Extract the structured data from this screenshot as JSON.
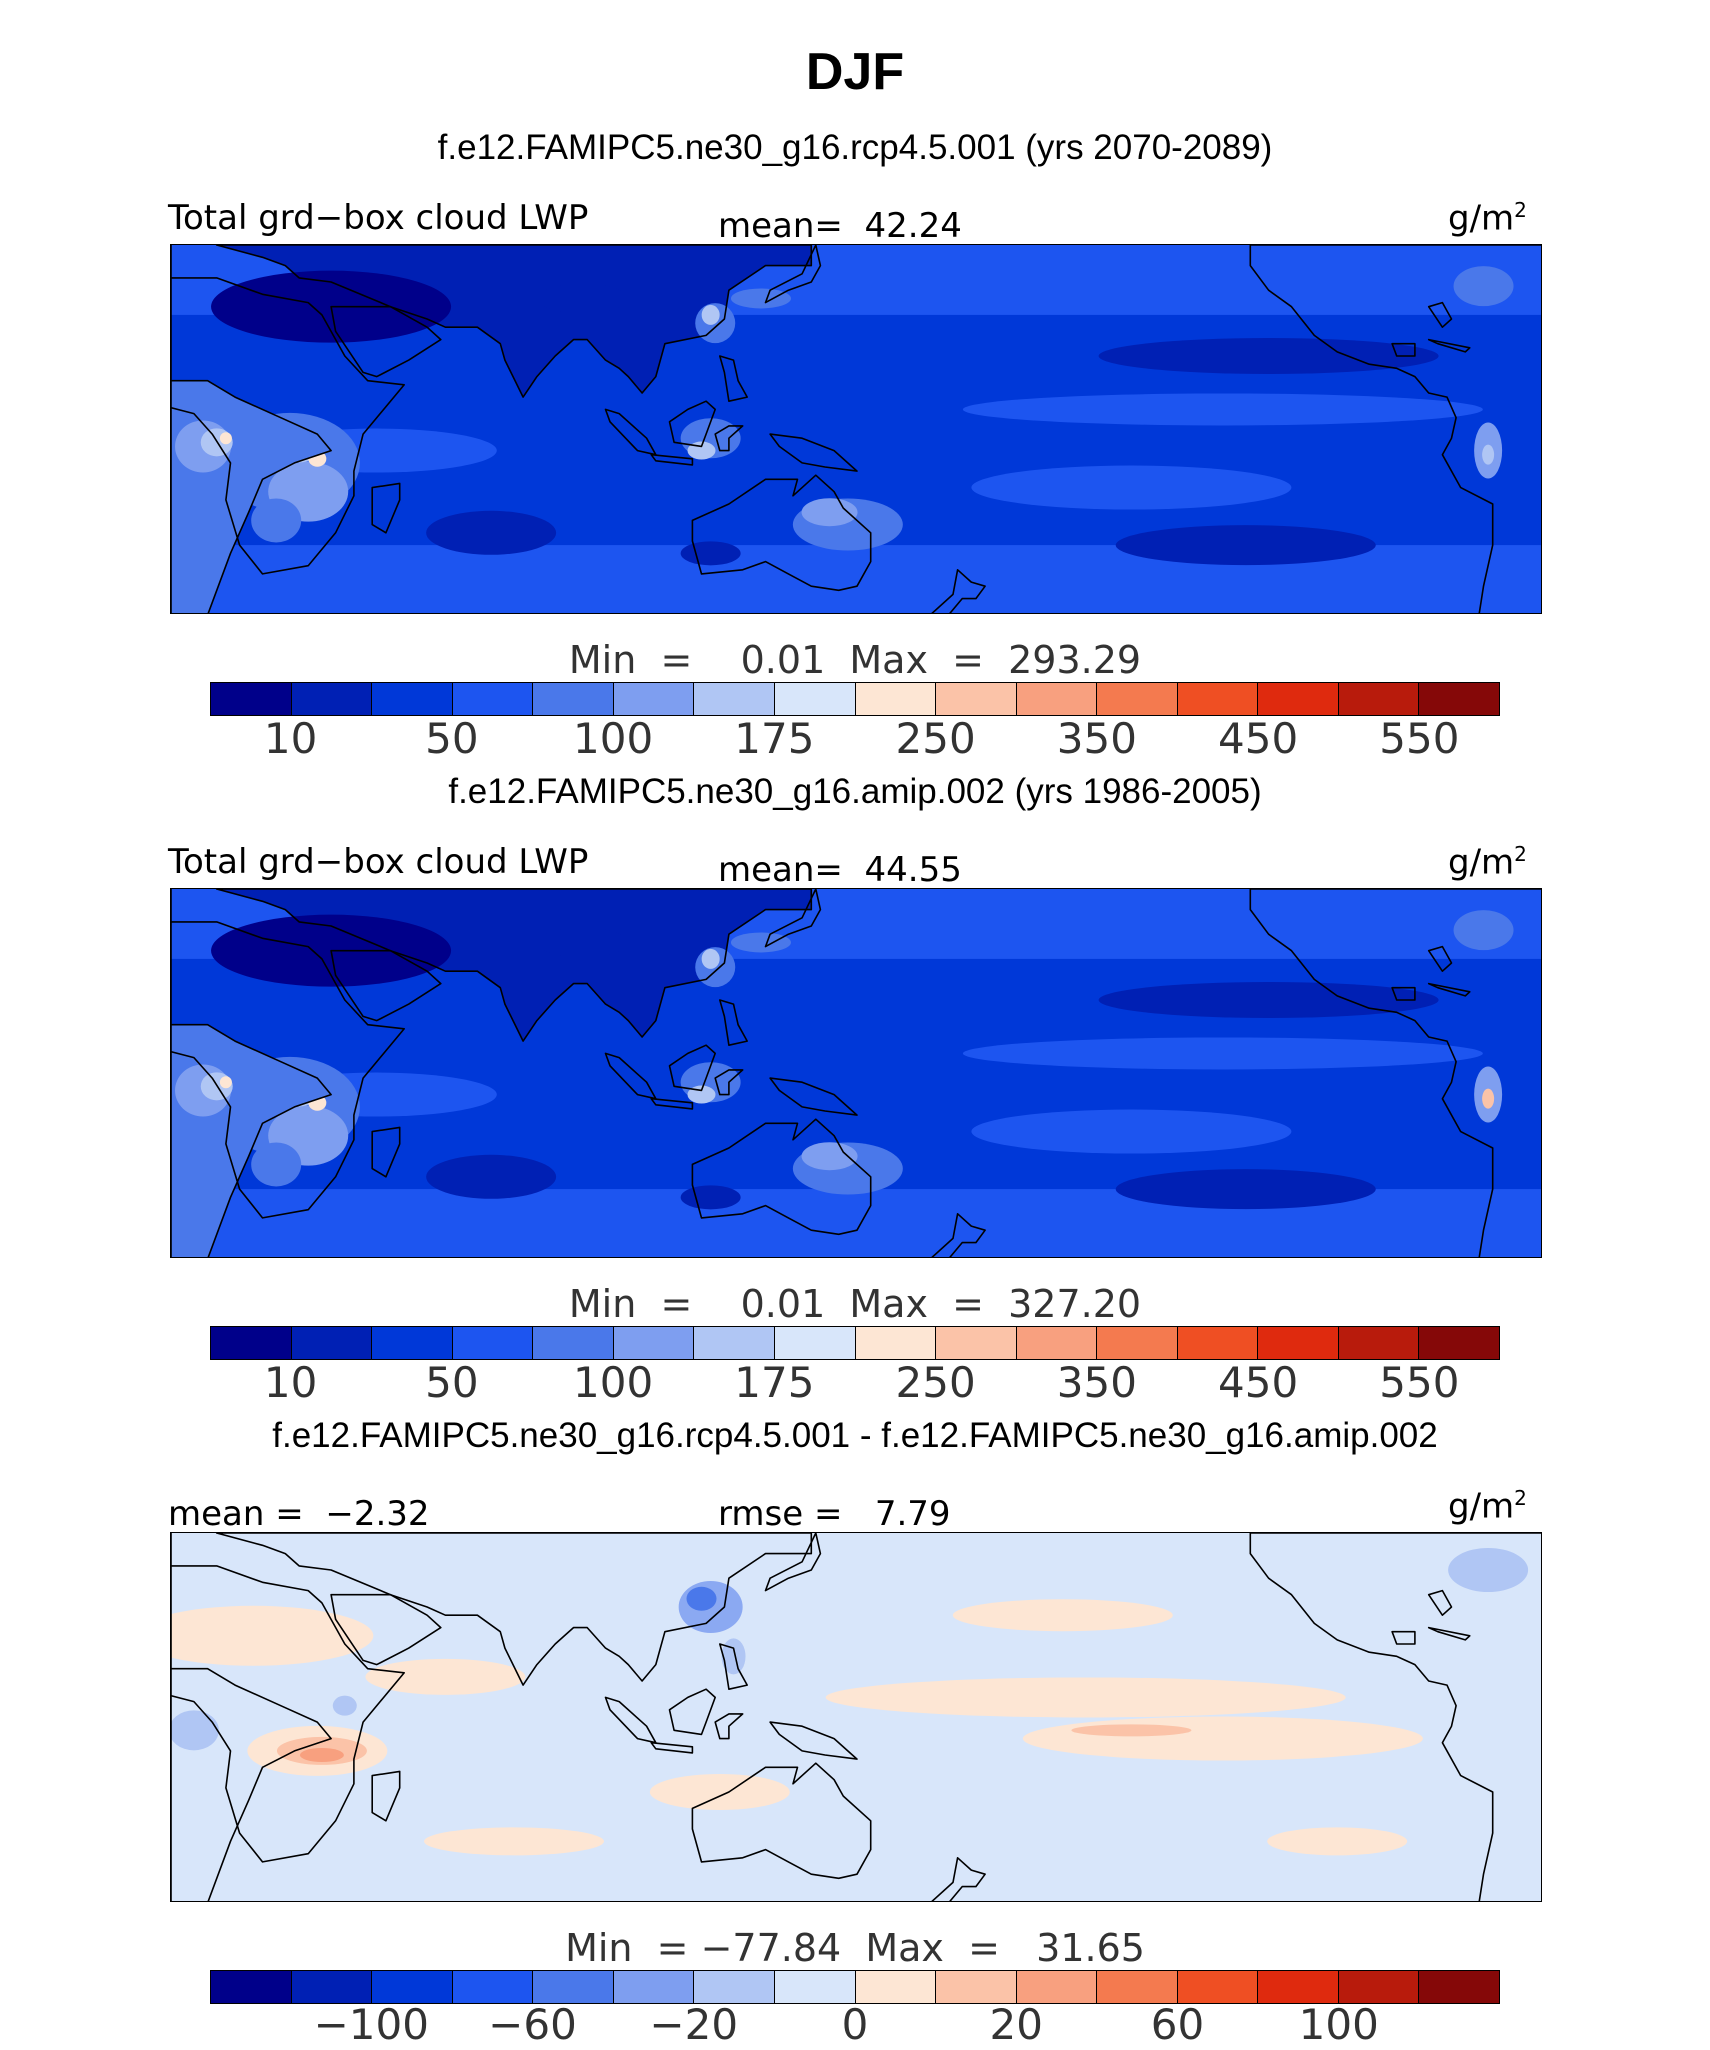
{
  "title": "DJF",
  "panels": [
    {
      "case_title": "f.e12.FAMIPC5.ne30_g16.rcp4.5.001 (yrs 2070-2089)",
      "left_label": "Total grd−box cloud LWP",
      "center_label": "mean=  42.24",
      "units": "g/m",
      "units_sup": "2",
      "minmax": "Min  =    0.01  Max  =  293.29",
      "colorbar_ticks": [
        "10",
        "50",
        "100",
        "175",
        "250",
        "350",
        "450",
        "550"
      ],
      "field": "future"
    },
    {
      "case_title": "f.e12.FAMIPC5.ne30_g16.amip.002 (yrs 1986-2005)",
      "left_label": "Total grd−box cloud LWP",
      "center_label": "mean=  44.55",
      "units": "g/m",
      "units_sup": "2",
      "minmax": "Min  =    0.01  Max  =  327.20",
      "colorbar_ticks": [
        "10",
        "50",
        "100",
        "175",
        "250",
        "350",
        "450",
        "550"
      ],
      "field": "control"
    },
    {
      "case_title": "f.e12.FAMIPC5.ne30_g16.rcp4.5.001 - f.e12.FAMIPC5.ne30_g16.amip.002",
      "left_label": "mean =  −2.32",
      "center_label": "rmse =   7.79",
      "units": "g/m",
      "units_sup": "2",
      "minmax": "Min  = −77.84  Max  =   31.65",
      "colorbar_ticks": [
        "−100",
        "−60",
        "−20",
        "0",
        "20",
        "60",
        "100"
      ],
      "field": "difference"
    }
  ],
  "colors": {
    "palette": [
      "#00008a",
      "#0020b4",
      "#0038d8",
      "#1d55f0",
      "#4a78ea",
      "#7e9ef0",
      "#b0c6f4",
      "#d8e6fa",
      "#fde6d4",
      "#fbc3a8",
      "#f8a07f",
      "#f47a4f",
      "#ef4f23",
      "#df2a0e",
      "#b81b0c",
      "#850808"
    ],
    "coastline": "#000000"
  }
}
